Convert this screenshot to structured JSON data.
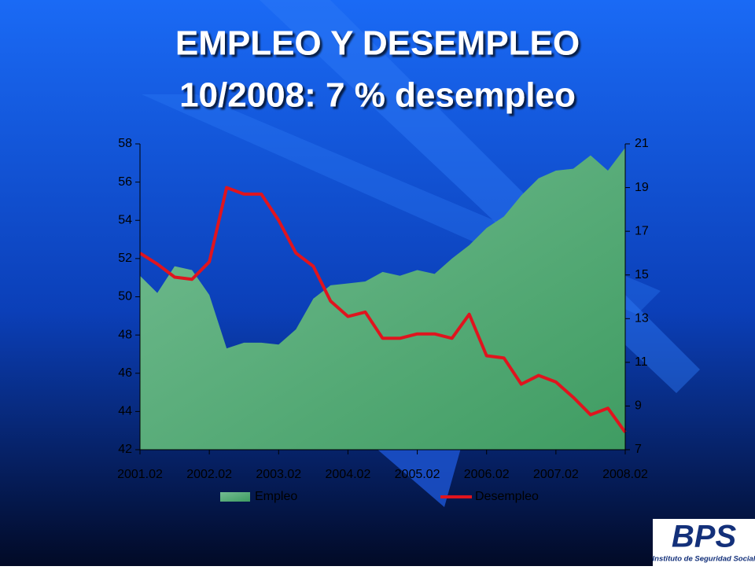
{
  "chart_data": {
    "type": "area_line",
    "title": "EMPLEO Y DESEMPLEO",
    "subtitle": "10/2008: 7 % desempleo",
    "categories": [
      "2001.02",
      null,
      null,
      null,
      "2002.02",
      null,
      null,
      null,
      "2003.02",
      null,
      null,
      null,
      "2004.02",
      null,
      null,
      null,
      "2005.02",
      null,
      null,
      null,
      "2006.02",
      null,
      null,
      null,
      "2007.02",
      null,
      null,
      null,
      "2008.02"
    ],
    "series": [
      {
        "name": "Empleo",
        "color": "#5fb27f",
        "values": [
          51.1,
          50.2,
          51.6,
          51.4,
          50.1,
          47.3,
          47.6,
          47.6,
          47.5,
          48.3,
          49.9,
          50.6,
          50.7,
          50.8,
          51.3,
          51.1,
          51.4,
          51.2,
          52.0,
          52.7,
          53.6,
          54.2,
          55.3,
          56.2,
          56.6,
          56.7,
          57.4,
          56.6,
          57.8
        ]
      },
      {
        "name": "Desempleo",
        "color": "#e0141e",
        "axis": "y2",
        "values": [
          16.0,
          15.5,
          14.9,
          14.8,
          15.6,
          19.0,
          18.7,
          18.7,
          17.5,
          16.0,
          15.4,
          13.8,
          13.1,
          13.3,
          12.1,
          12.1,
          12.3,
          12.3,
          12.1,
          13.2,
          11.3,
          11.2,
          10.0,
          10.4,
          10.1,
          9.4,
          8.6,
          8.9,
          7.8
        ]
      }
    ],
    "ylim": [
      42,
      58
    ],
    "yticks": [
      42,
      44,
      46,
      48,
      50,
      52,
      54,
      56,
      58
    ],
    "y2lim": [
      7,
      21
    ],
    "y2ticks": [
      7,
      9,
      11,
      13,
      15,
      17,
      19,
      21
    ],
    "legend": "bottom"
  },
  "logo": {
    "text": "BPS",
    "caption": "Instituto de Seguridad Social"
  }
}
